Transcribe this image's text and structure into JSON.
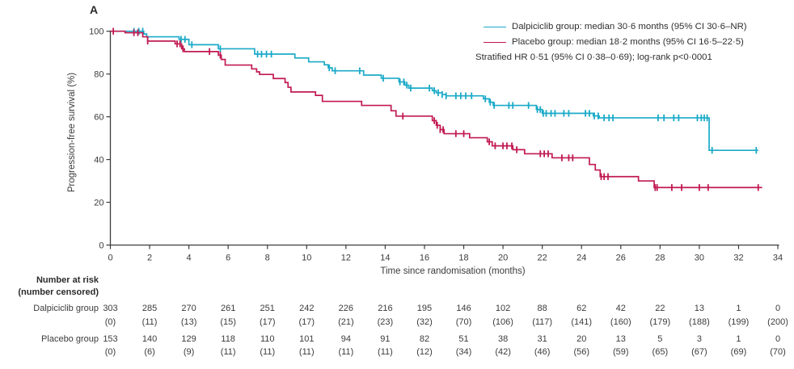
{
  "panel_label": "A",
  "colors": {
    "dalpiciclib": "#1bAAc8",
    "placebo": "#c11a52",
    "axis": "#3c3c3c",
    "text": "#3b3b3b"
  },
  "legend": {
    "entries": [
      {
        "label": "Dalpiciclib group: median 30·6 months (95% CI 30·6–NR)",
        "color": "#1bAAc8"
      },
      {
        "label": "Placebo group: median 18·2 months (95% CI 16·5–22·5)",
        "color": "#c11a52"
      }
    ],
    "note": "Stratified HR 0·51 (95% CI 0·38–0·69); log-rank p<0·0001"
  },
  "chart_data": {
    "type": "line",
    "subtype": "kaplan-meier-step",
    "title": "",
    "xlabel": "Time since randomisation (months)",
    "ylabel": "Progression-free survival (%)",
    "xlim": [
      0,
      34
    ],
    "ylim": [
      0,
      100
    ],
    "xticks": [
      0,
      2,
      4,
      6,
      8,
      10,
      12,
      14,
      16,
      18,
      20,
      22,
      24,
      26,
      28,
      30,
      32,
      34
    ],
    "yticks": [
      0,
      20,
      40,
      60,
      80,
      100
    ],
    "grid": false,
    "legend_position": "top-right",
    "series": [
      {
        "name": "Dalpiciclib group",
        "color": "#1bAAc8",
        "median_months": "30·6",
        "ci": "30·6–NR",
        "end": 33.0,
        "steps": [
          [
            0,
            100
          ],
          [
            1.7,
            98.7
          ],
          [
            1.85,
            97.4
          ],
          [
            3.5,
            96.2
          ],
          [
            4.0,
            93.7
          ],
          [
            5.5,
            91.8
          ],
          [
            7.35,
            89.3
          ],
          [
            9.4,
            87.5
          ],
          [
            10.1,
            85.7
          ],
          [
            10.9,
            84.3
          ],
          [
            11.1,
            82.9
          ],
          [
            11.3,
            81.5
          ],
          [
            12.9,
            79.5
          ],
          [
            13.8,
            78.0
          ],
          [
            14.7,
            76.3
          ],
          [
            15.0,
            74.8
          ],
          [
            15.2,
            73.4
          ],
          [
            16.4,
            72.2
          ],
          [
            16.6,
            71.2
          ],
          [
            16.9,
            70.4
          ],
          [
            17.1,
            69.8
          ],
          [
            19.0,
            68.4
          ],
          [
            19.3,
            66.8
          ],
          [
            19.5,
            65.3
          ],
          [
            21.7,
            63.4
          ],
          [
            22.0,
            61.6
          ],
          [
            24.6,
            60.4
          ],
          [
            24.9,
            59.5
          ],
          [
            30.5,
            44.3
          ]
        ],
        "censor_times": [
          1.2,
          1.45,
          1.65,
          3.6,
          3.8,
          4.15,
          5.6,
          7.5,
          7.7,
          7.95,
          8.2,
          11.15,
          11.45,
          12.7,
          13.9,
          14.75,
          14.95,
          15.1,
          15.3,
          16.25,
          16.5,
          16.7,
          16.9,
          17.1,
          17.6,
          17.85,
          18.1,
          18.4,
          19.1,
          19.35,
          19.55,
          20.3,
          20.5,
          21.3,
          21.75,
          21.9,
          22.05,
          22.2,
          22.45,
          22.65,
          23.1,
          23.35,
          24.2,
          24.4,
          24.65,
          24.85,
          25.15,
          25.4,
          25.6,
          27.9,
          28.2,
          28.7,
          28.95,
          29.9,
          30.1,
          30.25,
          30.4,
          30.65,
          32.9
        ]
      },
      {
        "name": "Placebo group",
        "color": "#c11a52",
        "median_months": "18·2",
        "ci": "16·5–22·5",
        "end": 33.2,
        "steps": [
          [
            0,
            100
          ],
          [
            0.75,
            99.3
          ],
          [
            1.65,
            97.4
          ],
          [
            1.9,
            95.4
          ],
          [
            3.3,
            94.1
          ],
          [
            3.63,
            91.8
          ],
          [
            3.77,
            90.5
          ],
          [
            5.5,
            88.8
          ],
          [
            5.65,
            86.8
          ],
          [
            5.85,
            84.2
          ],
          [
            7.2,
            82.4
          ],
          [
            7.45,
            81.0
          ],
          [
            7.6,
            79.8
          ],
          [
            8.3,
            77.9
          ],
          [
            8.9,
            76.0
          ],
          [
            9.05,
            73.8
          ],
          [
            9.2,
            71.6
          ],
          [
            10.45,
            70.0
          ],
          [
            10.8,
            67.2
          ],
          [
            12.8,
            65.3
          ],
          [
            14.3,
            62.8
          ],
          [
            14.55,
            60.3
          ],
          [
            16.4,
            58.2
          ],
          [
            16.6,
            56.0
          ],
          [
            16.8,
            54.0
          ],
          [
            17.0,
            52.1
          ],
          [
            18.3,
            50.2
          ],
          [
            19.2,
            48.3
          ],
          [
            19.45,
            46.4
          ],
          [
            20.5,
            44.6
          ],
          [
            21.1,
            42.7
          ],
          [
            22.5,
            40.8
          ],
          [
            24.4,
            37.7
          ],
          [
            24.7,
            35.1
          ],
          [
            24.95,
            32.0
          ],
          [
            26.9,
            30.0
          ],
          [
            27.7,
            26.9
          ]
        ],
        "censor_times": [
          0.15,
          1.2,
          1.4,
          1.9,
          3.4,
          3.55,
          3.7,
          5.05,
          5.6,
          14.9,
          16.5,
          16.65,
          16.8,
          16.95,
          17.6,
          18.0,
          19.3,
          19.6,
          20.0,
          20.2,
          20.45,
          20.7,
          21.9,
          22.1,
          22.3,
          23.0,
          23.35,
          23.55,
          25.0,
          25.15,
          25.35,
          27.75,
          27.85,
          28.6,
          29.1,
          30.0,
          30.45,
          33.0
        ]
      }
    ]
  },
  "risk_table": {
    "header_line1": "Number at risk",
    "header_line2": "(number censored)",
    "times": [
      0,
      2,
      4,
      6,
      8,
      10,
      12,
      14,
      16,
      18,
      20,
      22,
      24,
      26,
      28,
      30,
      32,
      34
    ],
    "rows": [
      {
        "label": "Dalpiciclib group",
        "at_risk": [
          303,
          285,
          270,
          261,
          251,
          242,
          226,
          216,
          195,
          146,
          102,
          88,
          62,
          42,
          22,
          13,
          1,
          0
        ],
        "censored": [
          "(0)",
          "(11)",
          "(13)",
          "(15)",
          "(17)",
          "(17)",
          "(21)",
          "(23)",
          "(32)",
          "(70)",
          "(106)",
          "(117)",
          "(141)",
          "(160)",
          "(179)",
          "(188)",
          "(199)",
          "(200)"
        ]
      },
      {
        "label": "Placebo group",
        "at_risk": [
          153,
          140,
          129,
          118,
          110,
          101,
          94,
          91,
          82,
          51,
          38,
          31,
          20,
          13,
          5,
          3,
          1,
          0
        ],
        "censored": [
          "(0)",
          "(6)",
          "(9)",
          "(11)",
          "(11)",
          "(11)",
          "(11)",
          "(11)",
          "(12)",
          "(34)",
          "(42)",
          "(46)",
          "(56)",
          "(59)",
          "(65)",
          "(67)",
          "(69)",
          "(70)"
        ]
      }
    ]
  }
}
